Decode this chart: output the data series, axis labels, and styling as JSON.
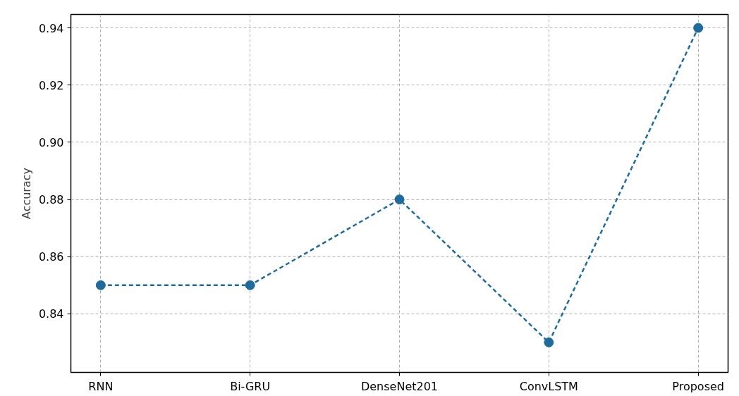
{
  "chart_data": {
    "type": "line",
    "ylabel": "Accuracy",
    "categories": [
      "RNN",
      "Bi-GRU",
      "DenseNet201",
      "ConvLSTM",
      "Proposed"
    ],
    "series": [
      {
        "color": "#1f6b9c",
        "values": [
          0.85,
          0.85,
          0.88,
          0.83,
          0.94
        ]
      }
    ],
    "ylim": [
      0.8195,
      0.9447
    ],
    "yticks": [
      {
        "value": 0.84,
        "label": "0.84"
      },
      {
        "value": 0.86,
        "label": "0.86"
      },
      {
        "value": 0.88,
        "label": "0.88"
      },
      {
        "value": 0.9,
        "label": "0.90"
      },
      {
        "value": 0.92,
        "label": "0.92"
      },
      {
        "value": 0.94,
        "label": "0.94"
      }
    ],
    "grid": true,
    "marker": "circle",
    "line_style": "dashed"
  }
}
